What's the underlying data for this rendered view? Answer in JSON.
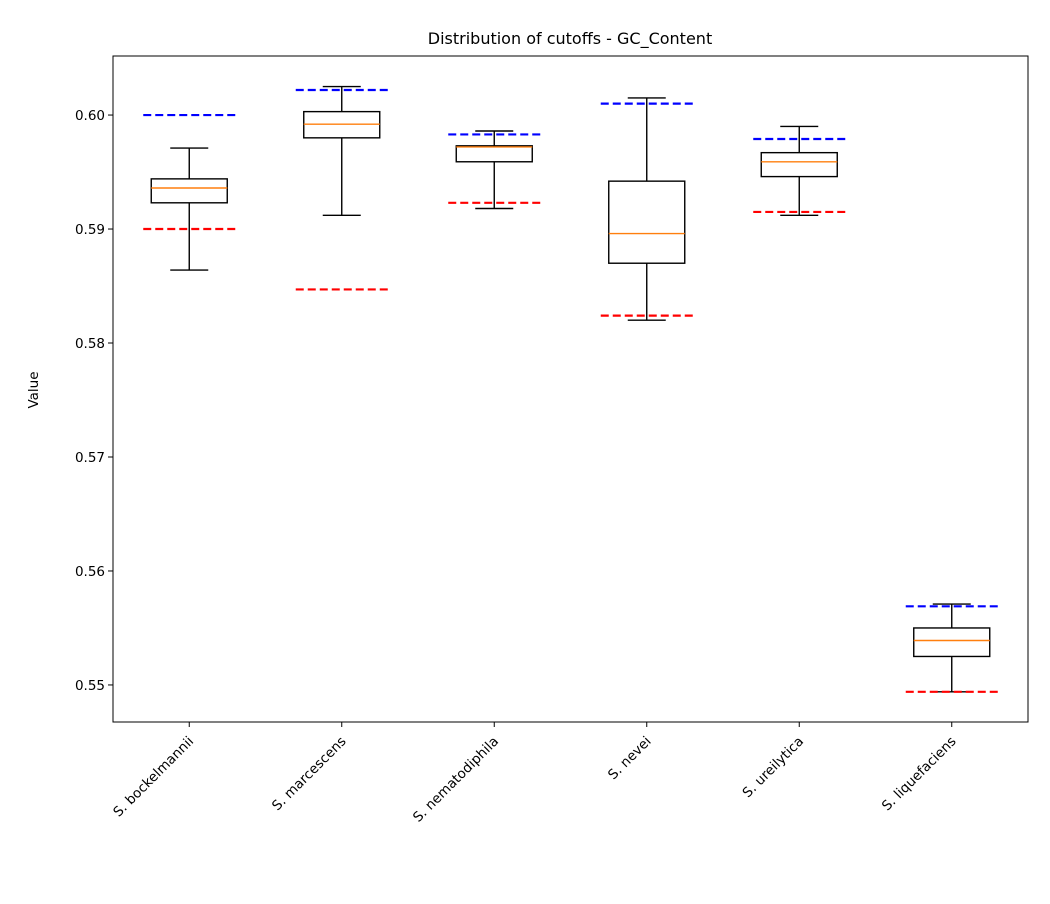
{
  "chart_data": {
    "type": "box",
    "title": "Distribution of cutoffs - GC_Content",
    "xlabel": "",
    "ylabel": "Value",
    "ylim": [
      0.54675,
      0.60518
    ],
    "yticks": [
      0.55,
      0.56,
      0.57,
      0.58,
      0.59,
      0.6
    ],
    "ytick_labels": [
      "0.55",
      "0.56",
      "0.57",
      "0.58",
      "0.59",
      "0.60"
    ],
    "categories": [
      "S. bockelmannii",
      "S. marcescens",
      "S. nematodiphila",
      "S. nevei",
      "S. ureilytica",
      "S. liquefaciens"
    ],
    "boxes": [
      {
        "whisker_low": 0.5864,
        "q1": 0.5923,
        "median": 0.5936,
        "q3": 0.5944,
        "whisker_high": 0.5971
      },
      {
        "whisker_low": 0.5912,
        "q1": 0.598,
        "median": 0.5992,
        "q3": 0.6003,
        "whisker_high": 0.6025
      },
      {
        "whisker_low": 0.5918,
        "q1": 0.5959,
        "median": 0.5972,
        "q3": 0.5973,
        "whisker_high": 0.5986
      },
      {
        "whisker_low": 0.582,
        "q1": 0.587,
        "median": 0.5896,
        "q3": 0.5942,
        "whisker_high": 0.6015
      },
      {
        "whisker_low": 0.5912,
        "q1": 0.5946,
        "median": 0.5959,
        "q3": 0.5967,
        "whisker_high": 0.599
      },
      {
        "whisker_low": 0.5494,
        "q1": 0.5525,
        "median": 0.5539,
        "q3": 0.555,
        "whisker_high": 0.5571
      }
    ],
    "upper_cutoffs": [
      0.6,
      0.6022,
      0.5983,
      0.601,
      0.5979,
      0.5569
    ],
    "lower_cutoffs": [
      0.59,
      0.5847,
      0.5923,
      0.5824,
      0.5915,
      0.5494
    ],
    "colors": {
      "box": "#000000",
      "median": "#ff7f0e",
      "upper_cutoff": "#0000ff",
      "lower_cutoff": "#ff0000"
    },
    "grid": false,
    "legend": "none"
  }
}
